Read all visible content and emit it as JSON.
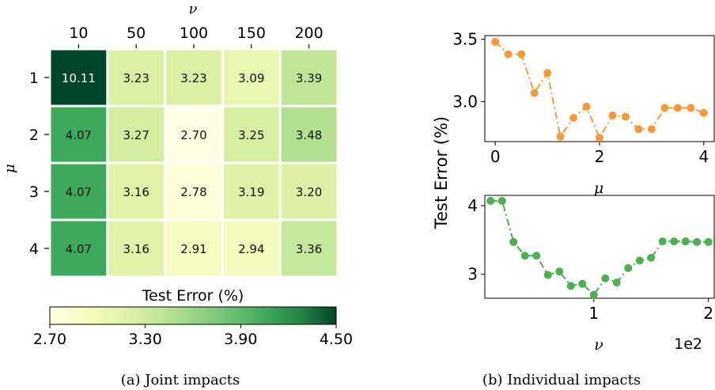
{
  "chart_data": [
    {
      "type": "heatmap",
      "title": "",
      "xlabel": "ν",
      "ylabel": "μ",
      "x_categories": [
        "10",
        "50",
        "100",
        "150",
        "200"
      ],
      "y_categories": [
        "1",
        "2",
        "3",
        "4"
      ],
      "values": [
        [
          10.11,
          3.23,
          3.23,
          3.09,
          3.39
        ],
        [
          4.07,
          3.27,
          2.7,
          3.25,
          3.48
        ],
        [
          4.07,
          3.16,
          2.78,
          3.19,
          3.2
        ],
        [
          4.07,
          3.16,
          2.91,
          2.94,
          3.36
        ]
      ],
      "cell_labels": [
        [
          "10.11",
          "3.23",
          "3.23",
          "3.09",
          "3.39"
        ],
        [
          "4.07",
          "3.27",
          "2.70",
          "3.25",
          "3.48"
        ],
        [
          "4.07",
          "3.16",
          "2.78",
          "3.19",
          "3.20"
        ],
        [
          "4.07",
          "3.16",
          "2.91",
          "2.94",
          "3.36"
        ]
      ],
      "colorbar": {
        "label": "Test Error (%)",
        "range": [
          2.7,
          4.5
        ],
        "ticks": [
          2.7,
          3.3,
          3.9,
          4.5
        ],
        "tick_labels": [
          "2.70",
          "3.30",
          "3.90",
          "4.50"
        ],
        "colormap": "YlGn"
      },
      "caption": "(a) Joint impacts"
    },
    {
      "type": "line",
      "caption": "(b) Individual impacts",
      "ylabel": "Test Error (%)",
      "subplots": [
        {
          "xlabel": "μ",
          "xlim": [
            -0.2,
            4.2
          ],
          "ylim": [
            2.68,
            3.53
          ],
          "xticks": [
            0,
            2,
            4
          ],
          "xtick_labels": [
            "0",
            "2",
            "4"
          ],
          "yticks": [
            3.0,
            3.5
          ],
          "ytick_labels": [
            "3.0",
            "3.5"
          ],
          "color": "#f59a3c",
          "x": [
            0,
            0.25,
            0.5,
            0.75,
            1.0,
            1.25,
            1.5,
            1.75,
            2.0,
            2.25,
            2.5,
            2.75,
            3.0,
            3.25,
            3.5,
            3.75,
            4.0
          ],
          "y": [
            3.48,
            3.38,
            3.38,
            3.07,
            3.23,
            2.72,
            2.87,
            2.96,
            2.71,
            2.89,
            2.88,
            2.78,
            2.78,
            2.95,
            2.95,
            2.95,
            2.91
          ]
        },
        {
          "xlabel": "ν",
          "x_offset_label": "1e2",
          "xlim": [
            0.05,
            2.05
          ],
          "ylim": [
            2.65,
            4.15
          ],
          "xticks": [
            1,
            2
          ],
          "xtick_labels": [
            "1",
            "2"
          ],
          "yticks": [
            3,
            4
          ],
          "ytick_labels": [
            "3",
            "4"
          ],
          "color": "#4caf50",
          "x": [
            0.1,
            0.2,
            0.3,
            0.4,
            0.5,
            0.6,
            0.7,
            0.8,
            0.9,
            1.0,
            1.1,
            1.2,
            1.3,
            1.4,
            1.5,
            1.6,
            1.7,
            1.8,
            1.9,
            2.0
          ],
          "y": [
            4.07,
            4.07,
            3.47,
            3.27,
            3.27,
            2.99,
            3.04,
            2.83,
            2.86,
            2.7,
            2.94,
            2.88,
            3.09,
            3.2,
            3.24,
            3.48,
            3.48,
            3.48,
            3.47,
            3.47
          ]
        }
      ]
    }
  ]
}
